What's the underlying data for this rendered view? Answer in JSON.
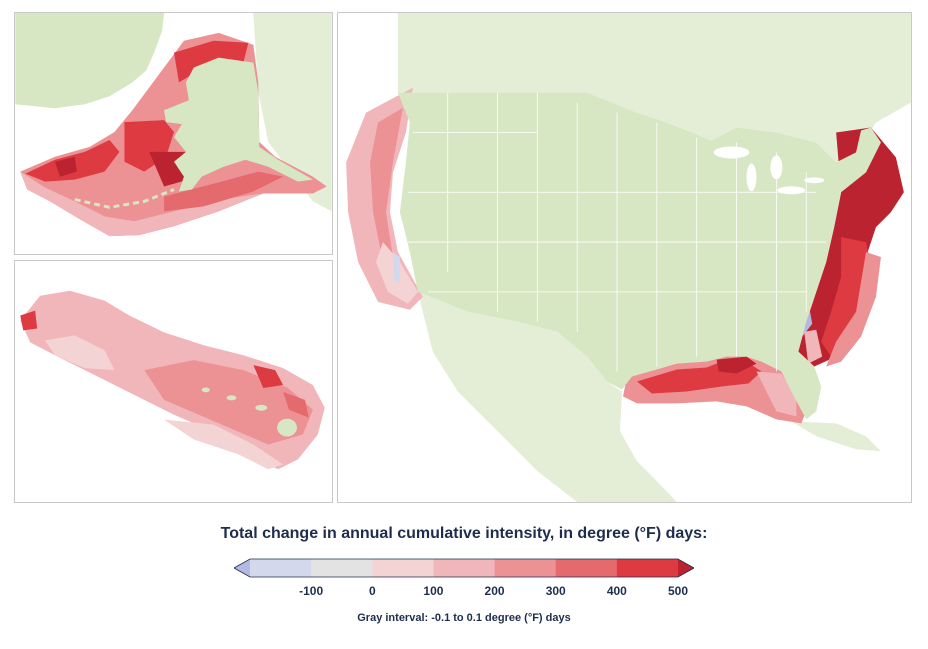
{
  "legend": {
    "title": "Total change in annual cumulative intensity, in degree (°F) days:",
    "tick_labels": [
      "-100",
      "0",
      "100",
      "200",
      "300",
      "400",
      "500"
    ],
    "note": "Gray interval: -0.1 to 0.1 degree (°F) days",
    "classes": [
      {
        "range": "< -100",
        "color": "#b3b9e0"
      },
      {
        "range": "-100 to -0.1",
        "color": "#d4d8ec"
      },
      {
        "range": "-0.1 to 0.1",
        "color": "#e3e3e3"
      },
      {
        "range": "0.1 to 100",
        "color": "#f4d3d5"
      },
      {
        "range": "100 to 200",
        "color": "#f1b6ba"
      },
      {
        "range": "200 to 300",
        "color": "#ec9295"
      },
      {
        "range": "300 to 400",
        "color": "#e56a6e"
      },
      {
        "range": "400 to 500",
        "color": "#de3a42"
      },
      {
        "range": "> 500",
        "color": "#bb2330"
      }
    ]
  },
  "map": {
    "land_color": "#d7e6c3",
    "border_color": "#ffffff",
    "panels": [
      "alaska",
      "hawaii",
      "contiguous-us"
    ]
  }
}
